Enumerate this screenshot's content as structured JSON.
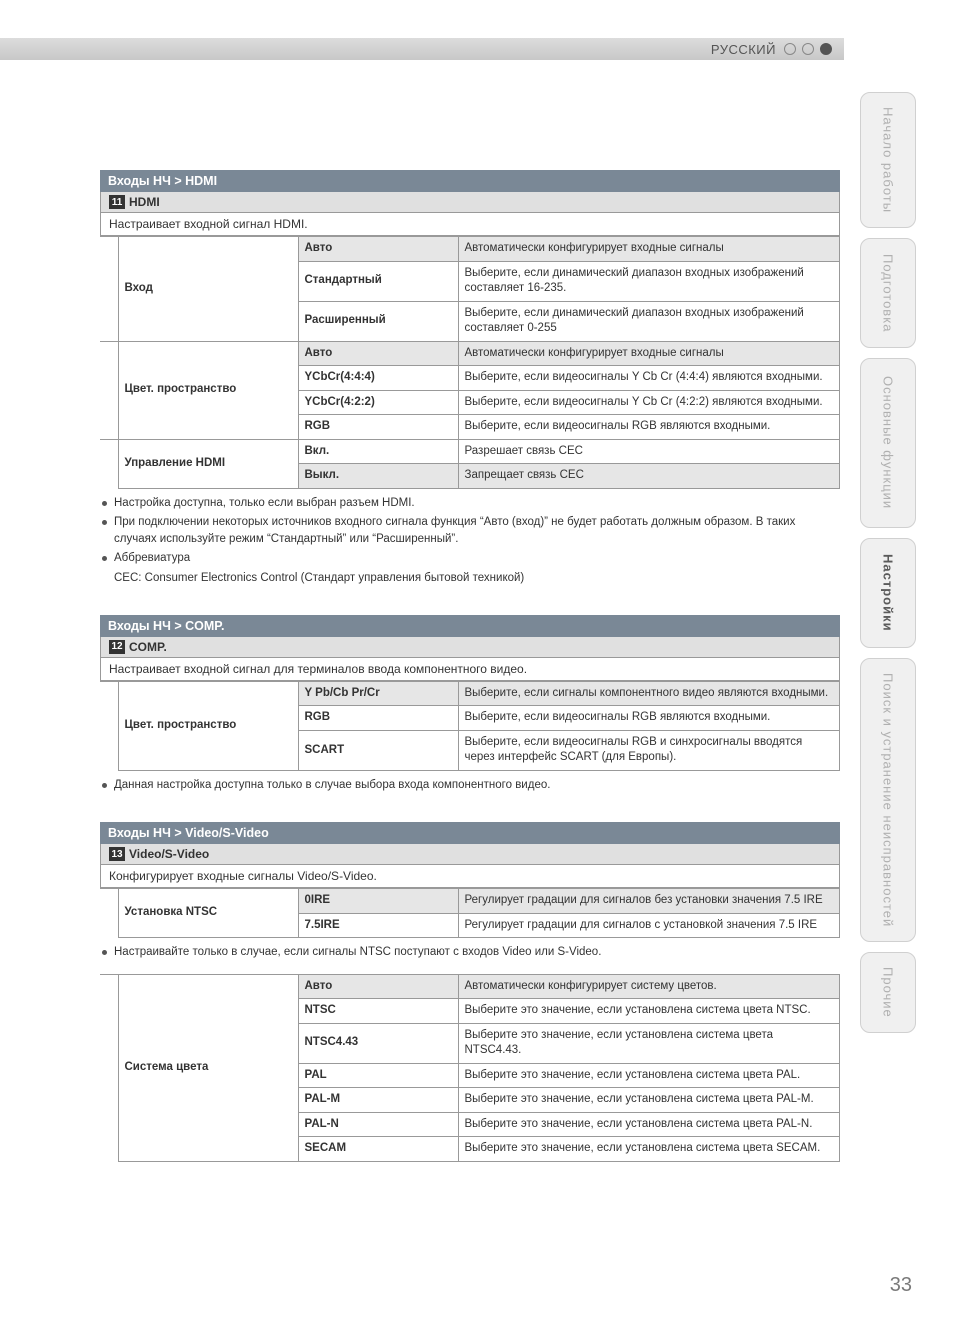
{
  "topbar": {
    "lang": "РУССКИЙ"
  },
  "sideTabs": [
    {
      "label": "Начало работы",
      "active": false,
      "cls": ""
    },
    {
      "label": "Подготовка",
      "active": false,
      "cls": ""
    },
    {
      "label": "Основные функции",
      "active": false,
      "cls": "tall"
    },
    {
      "label": "Настройки",
      "active": true,
      "cls": ""
    },
    {
      "label": "Поиск и устранение неисправностей",
      "active": false,
      "cls": "tall"
    },
    {
      "label": "Прочие",
      "active": false,
      "cls": "short"
    }
  ],
  "hdmi": {
    "heading": "Входы НЧ > HDMI",
    "num": "11",
    "sub": "HDMI",
    "desc": "Настраивает входной сигнал HDMI.",
    "groups": [
      {
        "label": "Вход",
        "rows": [
          {
            "opt": "Авто",
            "txt": "Автоматически конфигурирует входные сигналы",
            "shade": true
          },
          {
            "opt": "Стандартный",
            "txt": "Выберите, если динамический диапазон входных изображений составляет 16-235.",
            "shade": false
          },
          {
            "opt": "Расширенный",
            "txt": "Выберите, если динамический диапазон входных изображений составляет 0-255",
            "shade": false
          }
        ]
      },
      {
        "label": "Цвет. пространство",
        "rows": [
          {
            "opt": "Авто",
            "txt": "Автоматически конфигурирует входные сигналы",
            "shade": true
          },
          {
            "opt": "YCbCr(4:4:4)",
            "txt": "Выберите, если видеосигналы Y Cb Cr (4:4:4) являются входными.",
            "shade": false
          },
          {
            "opt": "YCbCr(4:2:2)",
            "txt": "Выберите, если видеосигналы Y Cb Cr (4:2:2) являются входными.",
            "shade": false
          },
          {
            "opt": "RGB",
            "txt": "Выберите, если видеосигналы RGB являются входными.",
            "shade": false
          }
        ]
      },
      {
        "label": "Управление HDMI",
        "rows": [
          {
            "opt": "Вкл.",
            "txt": "Разрешает связь CEC",
            "shade": false
          },
          {
            "opt": "Выкл.",
            "txt": "Запрещает связь CEC",
            "shade": true
          }
        ]
      }
    ],
    "notes": [
      "Настройка доступна, только если выбран разъем HDMI.",
      "При подключении некоторых источников входного сигнала функция “Авто (вход)” не будет работать должным образом. В таких случаях используйте режим “Стандартный” или “Расширенный”.",
      "Аббревиатура"
    ],
    "notesIndent": "CEC: Consumer Electronics Control (Стандарт управления бытовой техникой)"
  },
  "comp": {
    "heading": "Входы НЧ > COMP.",
    "num": "12",
    "sub": "COMP.",
    "desc": "Настраивает входной сигнал для терминалов ввода компонентного видео.",
    "groups": [
      {
        "label": "Цвет. пространство",
        "rows": [
          {
            "opt": "Y Pb/Cb Pr/Cr",
            "txt": "Выберите, если сигналы компонентного видео являются входными.",
            "shade": true
          },
          {
            "opt": "RGB",
            "txt": "Выберите, если видеосигналы RGB являются входными.",
            "shade": false
          },
          {
            "opt": "SCART",
            "txt": "Выберите, если видеосигналы RGB и синхросигналы вводятся через интерфейс SCART (для Европы).",
            "shade": false
          }
        ]
      }
    ],
    "notes": [
      "Данная настройка доступна только в случае выбора входа компонентного видео."
    ]
  },
  "video": {
    "heading": "Входы НЧ > Video/S-Video",
    "num": "13",
    "sub": "Video/S-Video",
    "desc": "Конфигурирует входные сигналы Video/S-Video.",
    "groups": [
      {
        "label": "Установка NTSC",
        "rows": [
          {
            "opt": "0IRE",
            "txt": "Регулирует градации для сигналов без установки значения 7.5 IRE",
            "shade": true
          },
          {
            "opt": "7.5IRE",
            "txt": "Регулирует градации для сигналов с установкой значения 7.5 IRE",
            "shade": false
          }
        ]
      }
    ],
    "midnote": "Настраивайте только в случае, если сигналы NTSC поступают с входов Video или S-Video.",
    "groups2": [
      {
        "label": "Система цвета",
        "rows": [
          {
            "opt": "Авто",
            "txt": "Автоматически конфигурирует систему цветов.",
            "shade": true
          },
          {
            "opt": "NTSC",
            "txt": "Выберите это значение, если установлена система цвета NTSC.",
            "shade": false
          },
          {
            "opt": "NTSC4.43",
            "txt": "Выберите это значение, если установлена система цвета NTSC4.43.",
            "shade": false
          },
          {
            "opt": "PAL",
            "txt": "Выберите это значение, если установлена система цвета PAL.",
            "shade": false
          },
          {
            "opt": "PAL-M",
            "txt": "Выберите это значение, если установлена система цвета PAL-M.",
            "shade": false
          },
          {
            "opt": "PAL-N",
            "txt": "Выберите это значение, если установлена система цвета PAL-N.",
            "shade": false
          },
          {
            "opt": "SECAM",
            "txt": "Выберите это значение, если установлена система цвета SECAM.",
            "shade": false
          }
        ]
      }
    ]
  },
  "pageNumber": "33"
}
